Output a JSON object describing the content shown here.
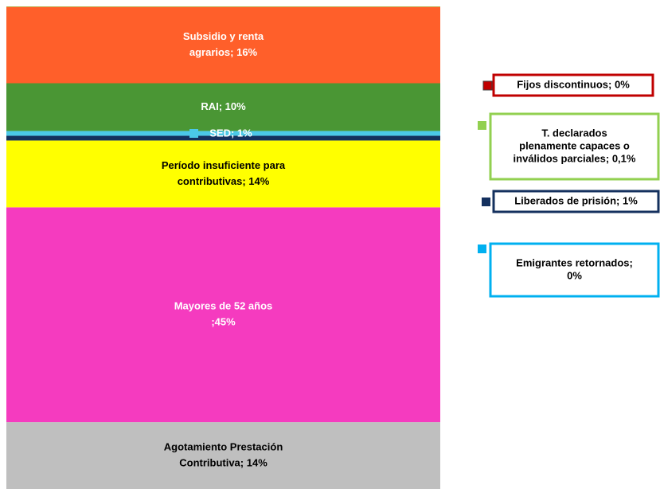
{
  "chart_data": {
    "type": "stacked_bar",
    "series": [
      {
        "color": "#bfbfbf",
        "values": [
          14
        ],
        "label": [
          "Agotamiento Prestación",
          "Contributiva; 14%"
        ]
      },
      {
        "color": "#f53bbf",
        "values": [
          45
        ],
        "label": [
          "Mayores de  52 años",
          ";45%"
        ]
      },
      {
        "color": "#ffff00",
        "values": [
          14
        ],
        "label": [
          "Período insuficiente para",
          "contributivas; 14%"
        ]
      },
      {
        "color": "#14305e",
        "values": [
          1
        ],
        "label": [
          "Liberados de prisión; 1%"
        ]
      },
      {
        "color": "#00b0f0",
        "values": [
          0
        ],
        "label": [
          "Emigrantes retornados;",
          "0%"
        ]
      },
      {
        "color": "#4bc8e8",
        "values": [
          1
        ],
        "label": [
          "SED; 1%"
        ]
      },
      {
        "color": "#4a9634",
        "values": [
          10
        ],
        "label": [
          "RAI; 10%"
        ]
      },
      {
        "color": "#ff5f2a",
        "values": [
          16
        ],
        "label": [
          "Subsidio y renta",
          "agrarios; 16%"
        ]
      },
      {
        "color": "#c00000",
        "values": [
          0
        ],
        "label": [
          "Fijos discontinuos;  0%"
        ]
      },
      {
        "color": "#92d050",
        "values": [
          0.1
        ],
        "label": [
          "T. declarados",
          "plenamente capaces o",
          "inválidos parciales; 0,1%"
        ]
      }
    ]
  }
}
